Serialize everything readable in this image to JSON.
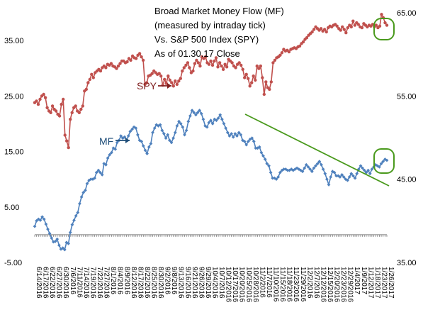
{
  "chart_data": {
    "type": "line",
    "title_lines": [
      "Broad Market Money Flow (MF)",
      "(measured by intraday tick)",
      "Vs. S&P 500 Index (SPY)",
      "As of 01.30.17 Close"
    ],
    "left_axis": {
      "ylim": [
        -5,
        35
      ],
      "tick_labels": [
        "35.00",
        "25.00",
        "15.00",
        "5.00",
        "-5.00"
      ],
      "tick_values": [
        35,
        25,
        15,
        5,
        -5
      ]
    },
    "right_axis": {
      "ylim": [
        35,
        65
      ],
      "tick_labels": [
        "65.00",
        "55.00",
        "45.00",
        "35.00"
      ],
      "tick_values": [
        65,
        55,
        45,
        35
      ]
    },
    "x_tick_labels": [
      "6/14/2016",
      "6/17/2016",
      "6/22/2016",
      "6/27/2016",
      "6/30/2016",
      "7/6/2016",
      "7/11/2016",
      "7/14/2016",
      "7/19/2016",
      "7/22/2016",
      "7/27/2016",
      "8/1/2016",
      "8/4/2016",
      "8/9/2016",
      "8/12/2016",
      "8/17/2016",
      "8/22/2016",
      "8/25/2016",
      "8/30/2016",
      "9/2/2016",
      "9/8/2016",
      "9/13/2016",
      "9/16/2016",
      "9/21/2016",
      "9/26/2016",
      "9/29/2016",
      "10/4/2016",
      "10/7/2016",
      "10/12/2016",
      "10/17/2016",
      "10/20/2016",
      "10/25/2016",
      "10/28/2016",
      "11/2/2016",
      "11/7/2016",
      "11/10/2016",
      "11/15/2016",
      "11/18/2016",
      "11/23/2016",
      "11/29/2016",
      "12/2/2016",
      "12/7/2016",
      "12/12/2016",
      "12/15/2016",
      "12/20/2016",
      "12/23/2016",
      "12/29/2016",
      "1/4/2017",
      "1/9/2017",
      "1/12/2017",
      "1/18/2017",
      "1/23/2017",
      "1/26/2017"
    ],
    "series": [
      {
        "name": "SPY",
        "axis": "right",
        "color": "#c0504d",
        "values": [
          54.2,
          54.4,
          54.0,
          54.6,
          55.0,
          55.2,
          54.8,
          53.6,
          53.2,
          53.0,
          53.8,
          53.4,
          53.2,
          52.8,
          52.6,
          54.0,
          54.6,
          50.3,
          49.6,
          48.8,
          52.2,
          53.0,
          53.6,
          53.8,
          53.2,
          53.0,
          53.4,
          53.8,
          55.6,
          55.8,
          56.6,
          57.0,
          57.6,
          57.2,
          57.8,
          58.0,
          58.2,
          58.0,
          58.4,
          58.6,
          58.4,
          58.8,
          58.7,
          58.9,
          58.6,
          58.5,
          58.3,
          58.6,
          58.9,
          59.2,
          59.2,
          59.0,
          59.1,
          59.5,
          59.3,
          59.8,
          59.6,
          59.5,
          59.9,
          60.1,
          59.7,
          59.3,
          56.4,
          56.6,
          57.4,
          57.5,
          57.7,
          58.0,
          57.8,
          57.6,
          57.7,
          57.4,
          56.3,
          57.0,
          56.5,
          57.4,
          56.9,
          56.6,
          56.2,
          56.8,
          56.4,
          56.8,
          57.1,
          58.0,
          58.4,
          58.7,
          59.0,
          58.4,
          57.8,
          58.0,
          58.9,
          59.3,
          59.0,
          58.6,
          59.7,
          59.5,
          59.7,
          59.0,
          58.8,
          59.2,
          58.7,
          59.2,
          59.6,
          58.5,
          59.0,
          58.6,
          58.2,
          58.8,
          58.5,
          59.4,
          59.2,
          59.0,
          58.6,
          58.4,
          58.8,
          59.0,
          58.7,
          58.2,
          57.2,
          57.6,
          57.1,
          56.2,
          56.6,
          57.4,
          56.9,
          58.6,
          58.3,
          58.6,
          57.2,
          55.2,
          56.7,
          56.0,
          55.8,
          56.7,
          59.0,
          59.3,
          59.6,
          59.7,
          59.9,
          60.2,
          60.6,
          60.4,
          60.5,
          60.3,
          60.6,
          60.7,
          60.8,
          60.7,
          60.9,
          61.0,
          61.3,
          61.5,
          61.8,
          62.0,
          62.3,
          62.5,
          62.7,
          63.0,
          63.3,
          63.1,
          62.9,
          63.1,
          62.8,
          63.0,
          62.7,
          63.2,
          63.4,
          63.3,
          63.5,
          63.6,
          63.4,
          63.1,
          62.9,
          63.3,
          63.0,
          62.6,
          63.2,
          63.5,
          63.3,
          64.0,
          63.5,
          63.8,
          63.6,
          63.3,
          63.2,
          63.7,
          63.5,
          63.3,
          63.5,
          63.4,
          63.6,
          63.3,
          63.5,
          63.2,
          63.4,
          64.8,
          64.4,
          63.8,
          63.5
        ]
      },
      {
        "name": "MF",
        "axis": "left",
        "color": "#4f81bd",
        "values": [
          1.5,
          2.5,
          2.8,
          2.6,
          3.2,
          2.8,
          1.9,
          1.0,
          0.2,
          -0.6,
          -1.3,
          -1.2,
          -0.8,
          -1.9,
          -2.6,
          -2.4,
          -2.7,
          -1.4,
          -1.6,
          0.4,
          1.8,
          2.6,
          3.4,
          4.0,
          5.6,
          6.8,
          7.6,
          8.0,
          9.2,
          9.8,
          10.0,
          10.0,
          10.2,
          11.2,
          11.6,
          11.2,
          10.8,
          12.8,
          12.6,
          13.8,
          14.4,
          14.8,
          15.6,
          15.4,
          16.6,
          17.0,
          17.8,
          17.4,
          17.6,
          17.0,
          17.8,
          18.6,
          19.0,
          19.4,
          19.2,
          18.0,
          17.0,
          16.8,
          16.0,
          15.2,
          14.6,
          15.8,
          16.4,
          18.4,
          19.2,
          19.8,
          19.6,
          19.8,
          18.8,
          18.2,
          17.4,
          18.0,
          17.0,
          16.6,
          17.4,
          18.4,
          19.6,
          20.4,
          20.0,
          19.4,
          18.0,
          18.8,
          20.4,
          21.4,
          22.4,
          22.0,
          21.6,
          22.0,
          22.4,
          21.8,
          20.8,
          19.6,
          19.4,
          20.2,
          20.6,
          20.0,
          20.8,
          20.6,
          21.0,
          21.6,
          20.8,
          20.0,
          19.2,
          18.4,
          17.8,
          18.2,
          17.6,
          18.2,
          17.8,
          18.4,
          18.0,
          17.0,
          16.8,
          16.2,
          16.8,
          17.2,
          17.4,
          16.8,
          15.6,
          15.6,
          15.8,
          14.8,
          14.2,
          13.6,
          12.8,
          12.4,
          11.2,
          10.2,
          10.2,
          10.0,
          10.4,
          11.2,
          11.6,
          11.8,
          11.8,
          11.6,
          11.6,
          11.8,
          11.6,
          11.8,
          12.0,
          11.8,
          11.6,
          11.4,
          12.0,
          12.6,
          12.2,
          11.8,
          11.4,
          12.0,
          12.4,
          12.8,
          13.2,
          12.6,
          11.8,
          11.0,
          10.0,
          9.0,
          10.4,
          11.4,
          11.2,
          10.6,
          10.6,
          10.4,
          10.8,
          10.4,
          10.0,
          9.8,
          10.4,
          11.0,
          10.6,
          10.2,
          11.0,
          11.8,
          12.4,
          12.0,
          11.6,
          11.2,
          11.6,
          11.0,
          11.8,
          12.2,
          12.6,
          12.4,
          12.2,
          12.8,
          13.2,
          13.6,
          13.4
        ]
      }
    ],
    "annotations": [
      {
        "text": "SPY",
        "color": "#7f1e1e"
      },
      {
        "text": "MF",
        "color": "#1f4e79"
      }
    ],
    "grid": false
  },
  "colors": {
    "trendline": "#4a9a1d",
    "highlight_circle": "#4a9a1d",
    "arrow_spy": "#7f1e1e",
    "arrow_mf": "#1f4e79"
  }
}
